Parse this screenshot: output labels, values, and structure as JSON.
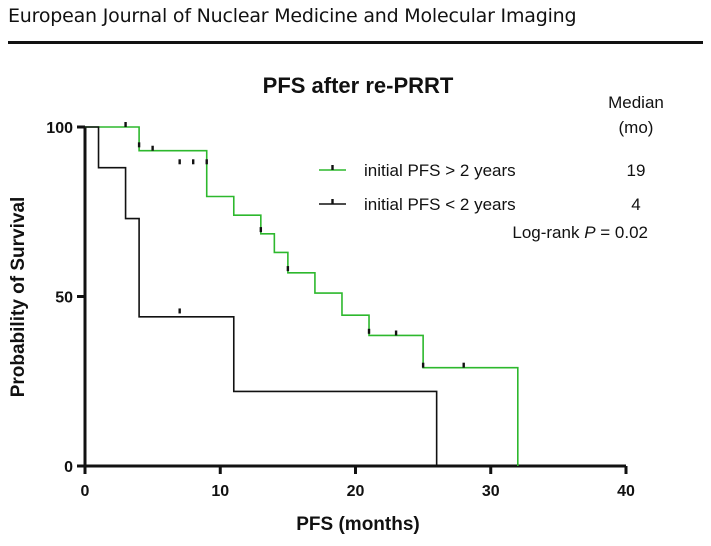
{
  "header": {
    "journal": "European Journal of Nuclear Medicine and Molecular Imaging"
  },
  "chart_data": {
    "type": "line",
    "title": "PFS after re-PRRT",
    "xlabel": "PFS (months)",
    "ylabel": "Probability of Survival",
    "xlim": [
      0,
      40
    ],
    "ylim": [
      0,
      100
    ],
    "xticks": [
      0,
      10,
      20,
      30,
      40
    ],
    "yticks": [
      0,
      50,
      100
    ],
    "grid": false,
    "legend_position": "top-right",
    "median_header": [
      "Median",
      "(mo)"
    ],
    "series": [
      {
        "name": "initial PFS > 2 years",
        "median": "19",
        "color": "#2db82d",
        "steps": [
          [
            0,
            100
          ],
          [
            4,
            93
          ],
          [
            9,
            79.5
          ],
          [
            11,
            74
          ],
          [
            13,
            68.5
          ],
          [
            14,
            63
          ],
          [
            15,
            57
          ],
          [
            17,
            51
          ],
          [
            19,
            44.5
          ],
          [
            21,
            38.5
          ],
          [
            25,
            29
          ],
          [
            32,
            0
          ]
        ],
        "censored": [
          [
            3,
            100
          ],
          [
            4,
            94
          ],
          [
            5,
            93
          ],
          [
            7,
            89
          ],
          [
            8,
            89
          ],
          [
            9,
            89
          ],
          [
            13,
            69
          ],
          [
            15,
            57.5
          ],
          [
            21,
            39
          ],
          [
            23,
            38.5
          ],
          [
            25,
            29
          ],
          [
            28,
            29
          ]
        ]
      },
      {
        "name": "initial PFS < 2 years",
        "median": "4",
        "color": "#111111",
        "steps": [
          [
            0,
            100
          ],
          [
            1,
            88
          ],
          [
            3,
            73
          ],
          [
            4,
            44
          ],
          [
            11,
            22
          ],
          [
            26,
            0
          ]
        ],
        "censored": [
          [
            7,
            45
          ]
        ]
      }
    ],
    "annotation": {
      "prefix": "Log-rank ",
      "italic": "P",
      "suffix": " = 0.02"
    }
  }
}
